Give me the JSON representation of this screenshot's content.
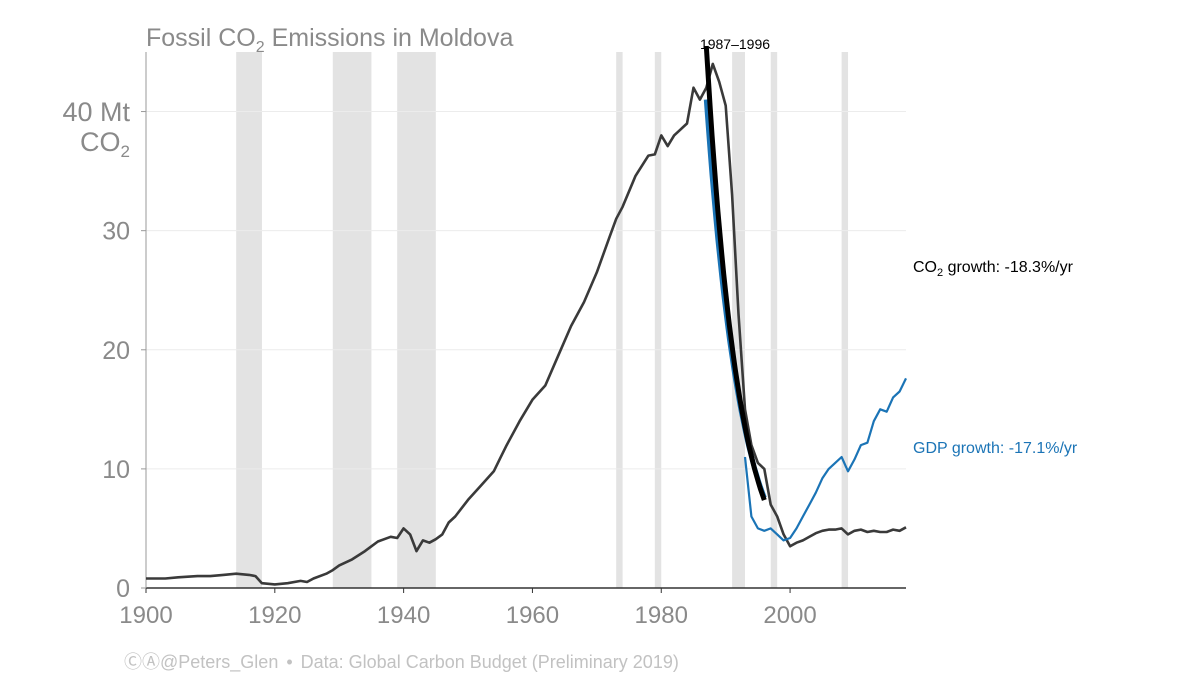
{
  "chart_data": {
    "type": "line",
    "title_prefix": "Fossil CO",
    "title_sub": "2",
    "title_suffix": " Emissions in Moldova",
    "ylabel_line1": "40 Mt",
    "ylabel_line2_prefix": "CO",
    "ylabel_line2_sub": "2",
    "xlim": [
      1900,
      2018
    ],
    "ylim": [
      0,
      45
    ],
    "x_ticks": [
      1900,
      1920,
      1940,
      1960,
      1980,
      2000
    ],
    "y_ticks": [
      0,
      10,
      20,
      30,
      40
    ],
    "y_tick_labels": [
      "0",
      "10",
      "20",
      "30",
      ""
    ],
    "recession_periods": [
      [
        1914,
        1918
      ],
      [
        1929,
        1935
      ],
      [
        1939,
        1945
      ],
      [
        1973,
        1974
      ],
      [
        1979,
        1980
      ],
      [
        1991,
        1993
      ],
      [
        1997,
        1998
      ],
      [
        2008,
        2009
      ]
    ],
    "series": [
      {
        "name": "Fossil CO2 emissions",
        "color": "#3a3a3a",
        "x": [
          1900,
          1903,
          1905,
          1908,
          1910,
          1912,
          1914,
          1916,
          1917,
          1918,
          1920,
          1922,
          1924,
          1925,
          1926,
          1928,
          1929,
          1930,
          1932,
          1934,
          1935,
          1936,
          1938,
          1939,
          1940,
          1941,
          1942,
          1943,
          1944,
          1945,
          1946,
          1947,
          1948,
          1950,
          1952,
          1954,
          1955,
          1956,
          1958,
          1960,
          1962,
          1964,
          1966,
          1968,
          1970,
          1972,
          1973,
          1974,
          1976,
          1978,
          1979,
          1980,
          1981,
          1982,
          1983,
          1984,
          1985,
          1986,
          1987,
          1988,
          1989,
          1990,
          1991,
          1992,
          1993,
          1994,
          1995,
          1996,
          1997,
          1998,
          1999,
          2000,
          2001,
          2002,
          2003,
          2004,
          2005,
          2006,
          2007,
          2008,
          2009,
          2010,
          2011,
          2012,
          2013,
          2014,
          2015,
          2016,
          2017,
          2018
        ],
        "values": [
          0.8,
          0.8,
          0.9,
          1.0,
          1.0,
          1.1,
          1.2,
          1.1,
          1.0,
          0.4,
          0.3,
          0.4,
          0.6,
          0.5,
          0.8,
          1.2,
          1.5,
          1.9,
          2.4,
          3.1,
          3.5,
          3.9,
          4.3,
          4.2,
          5.0,
          4.5,
          3.1,
          4.0,
          3.8,
          4.1,
          4.5,
          5.5,
          6.0,
          7.4,
          8.6,
          9.8,
          10.9,
          12.0,
          14.0,
          15.8,
          17.0,
          19.5,
          22.0,
          24.0,
          26.5,
          29.5,
          31.0,
          32.0,
          34.6,
          36.3,
          36.4,
          38.0,
          37.1,
          38.0,
          38.5,
          39.0,
          42.0,
          41.0,
          42.0,
          44.0,
          42.5,
          40.5,
          33.0,
          23.0,
          15.0,
          12.0,
          10.5,
          10.0,
          7.0,
          6.0,
          4.5,
          3.5,
          3.8,
          4.0,
          4.3,
          4.6,
          4.8,
          4.9,
          4.9,
          5.0,
          4.5,
          4.8,
          4.9,
          4.7,
          4.8,
          4.7,
          4.7,
          4.9,
          4.8,
          5.1
        ]
      },
      {
        "name": "GDP",
        "color": "#1b74b6",
        "x": [
          1993,
          1994,
          1995,
          1996,
          1997,
          1998,
          1999,
          2000,
          2001,
          2002,
          2003,
          2004,
          2005,
          2006,
          2007,
          2008,
          2009,
          2010,
          2011,
          2012,
          2013,
          2014,
          2015,
          2016,
          2017,
          2018
        ],
        "values": [
          11.0,
          6.0,
          5.0,
          4.8,
          5.0,
          4.5,
          4.0,
          4.2,
          5.0,
          6.0,
          7.0,
          8.0,
          9.2,
          10.0,
          10.5,
          11.0,
          9.8,
          10.8,
          12.0,
          12.2,
          14.0,
          15.0,
          14.8,
          16.0,
          16.5,
          17.6
        ]
      },
      {
        "name": "CO2 fit 1987-1996",
        "color": "#000000",
        "width": 5,
        "x_range": [
          1987,
          1996
        ],
        "start_value": 45.5,
        "rate": -0.183
      },
      {
        "name": "GDP fit 1987-1996",
        "color": "#1b74b6",
        "width": 5,
        "x_range": [
          1987,
          1996
        ],
        "start_value": 41.0,
        "rate": -0.171
      }
    ],
    "annotations": {
      "fit_period": "1987–1996",
      "co2_prefix": "CO",
      "co2_sub": "2",
      "co2_suffix": " growth: -18.3%/yr",
      "gdp_label": "GDP growth: -17.1%/yr"
    }
  },
  "footer": {
    "handle": "ⒸⒶ@Peters_Glen",
    "separator": "•",
    "source": "Data: Global Carbon Budget (Preliminary 2019)"
  }
}
